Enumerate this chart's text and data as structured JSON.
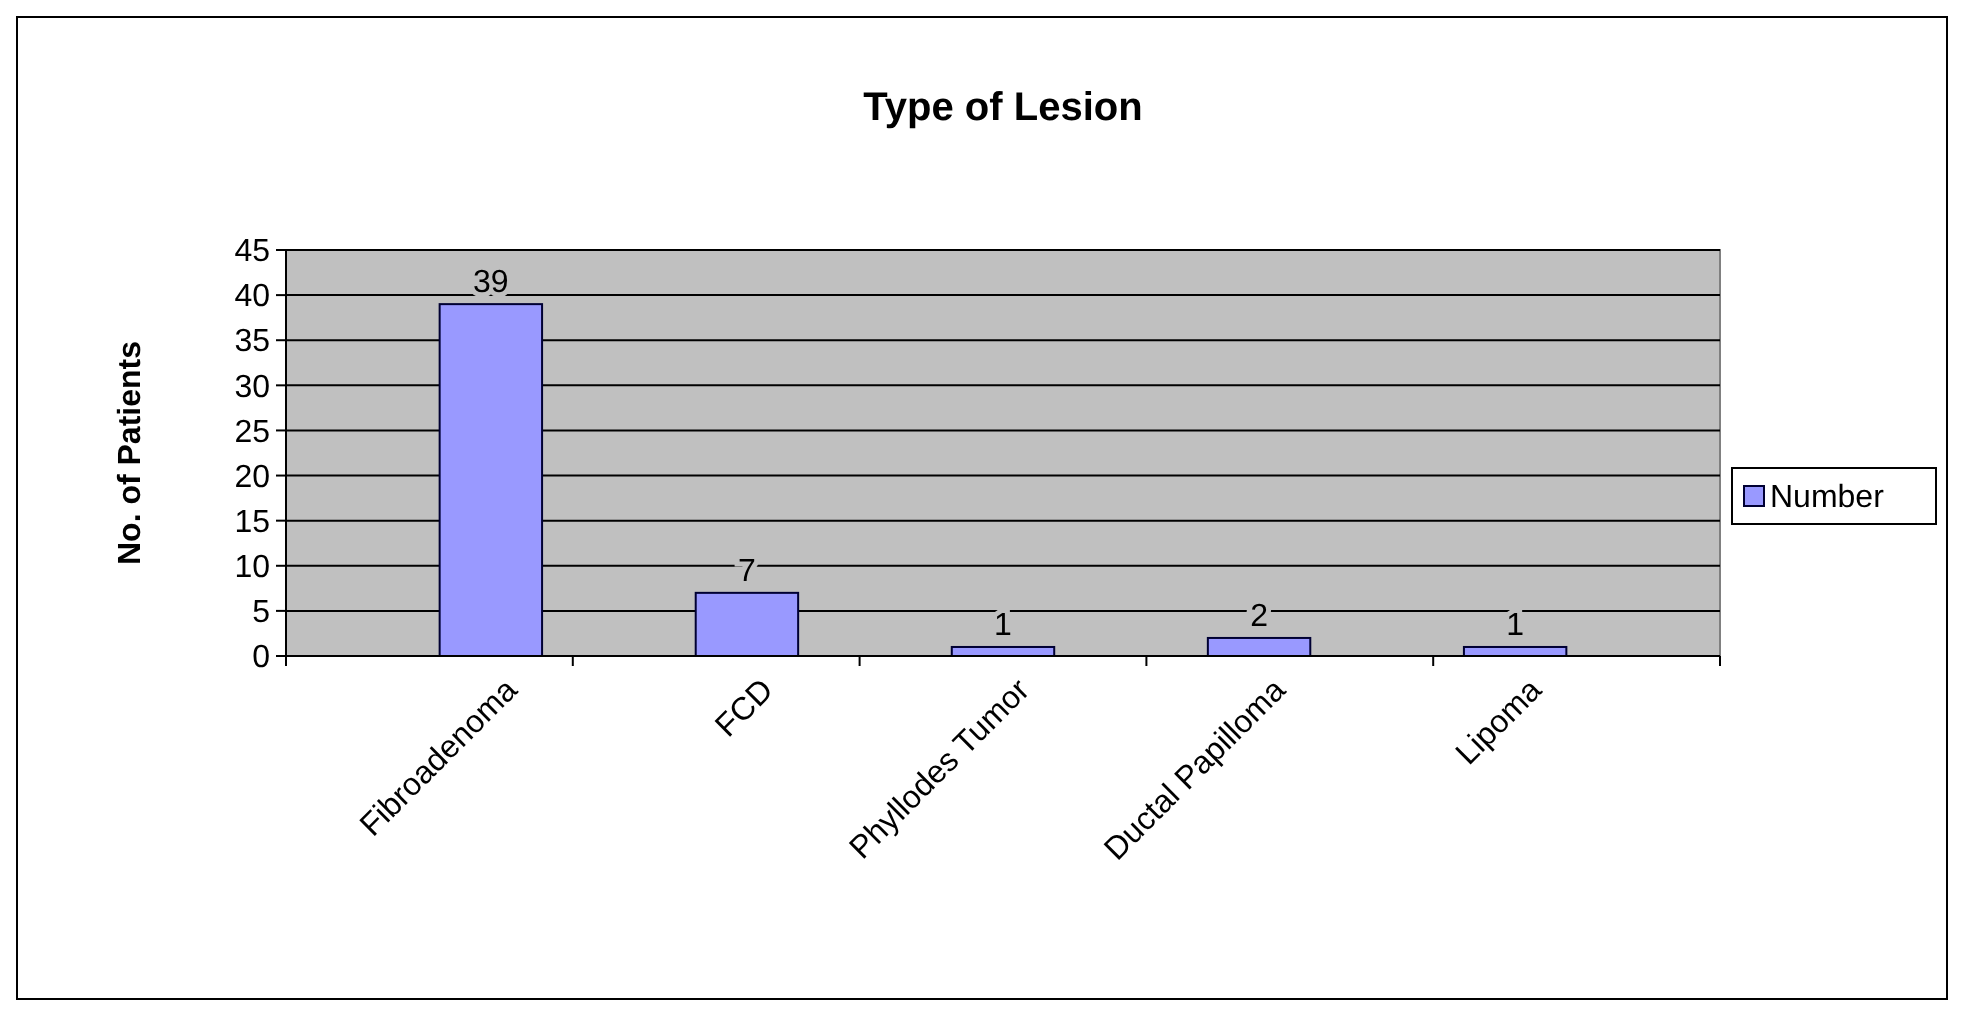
{
  "chart_data": {
    "type": "bar",
    "title": "Type of Lesion",
    "ylabel": "No. of Patients",
    "categories": [
      "Fibroadenoma",
      "FCD",
      "Phyllodes Tumor",
      "Ductal Papilloma",
      "Lipoma"
    ],
    "series": [
      {
        "name": "Number",
        "color": "#9999ff",
        "values": [
          39,
          7,
          1,
          2,
          1
        ]
      }
    ],
    "ylim": [
      0,
      45
    ],
    "yticks": [
      0,
      5,
      10,
      15,
      20,
      25,
      30,
      35,
      40,
      45
    ],
    "grid": "y",
    "legend": "right",
    "data_labels": true
  }
}
